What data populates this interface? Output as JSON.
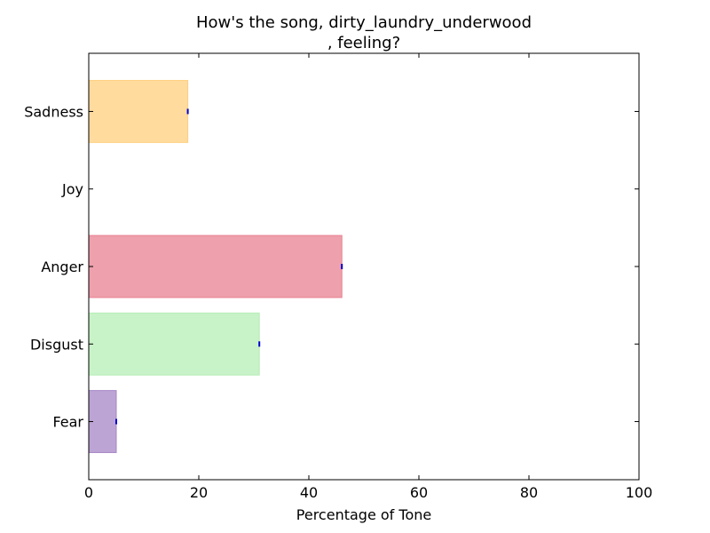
{
  "chart_data": {
    "type": "bar",
    "orientation": "horizontal",
    "title_line1": "How's the song, dirty_laundry_underwood",
    "title_line2": ", feeling?",
    "xlabel": "Percentage of Tone",
    "ylabel": "",
    "xlim": [
      0,
      100
    ],
    "x_ticks": [
      "0",
      "20",
      "40",
      "60",
      "80",
      "100"
    ],
    "categories": [
      "Fear",
      "Disgust",
      "Anger",
      "Joy",
      "Sadness"
    ],
    "values": [
      5,
      31,
      46,
      0,
      18
    ],
    "colors": [
      "#a686c6",
      "#b6edb6",
      "#e88090",
      "#ffffff",
      "#ffcf7e"
    ],
    "error_marker_color": "#0000cc",
    "grid": false,
    "legend": "none"
  }
}
